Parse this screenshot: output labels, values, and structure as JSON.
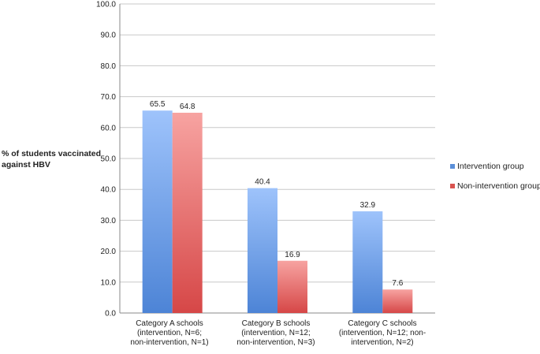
{
  "chart_data": {
    "type": "bar",
    "ylabel": "% of students vaccinated against HBV",
    "ylabel_lines": [
      "% of students vaccinated",
      "against HBV"
    ],
    "ylim": [
      0,
      100
    ],
    "ytick_labels": [
      "0.0",
      "10.0",
      "20.0",
      "30.0",
      "40.0",
      "50.0",
      "60.0",
      "70.0",
      "80.0",
      "90.0",
      "100.0"
    ],
    "grid": true,
    "legend_position": "right",
    "categories": [
      {
        "lines": [
          "Category A schools",
          "(intervention, N=6;",
          "non-intervention, N=1)"
        ]
      },
      {
        "lines": [
          "Category B schools",
          "(intervention, N=12;",
          "non-intervention, N=3)"
        ]
      },
      {
        "lines": [
          "Category C schools",
          "(intervention, N=12; non-",
          "intervention, N=2)"
        ]
      }
    ],
    "series": [
      {
        "name": "Intervention group",
        "color": "#5b8fd9",
        "values": [
          65.5,
          40.4,
          32.9
        ],
        "labels": [
          "65.5",
          "40.4",
          "32.9"
        ]
      },
      {
        "name": "Non-intervention group",
        "color": "#d9534f",
        "values": [
          64.8,
          16.9,
          7.6
        ],
        "labels": [
          "64.8",
          "16.9",
          "7.6"
        ]
      }
    ]
  }
}
